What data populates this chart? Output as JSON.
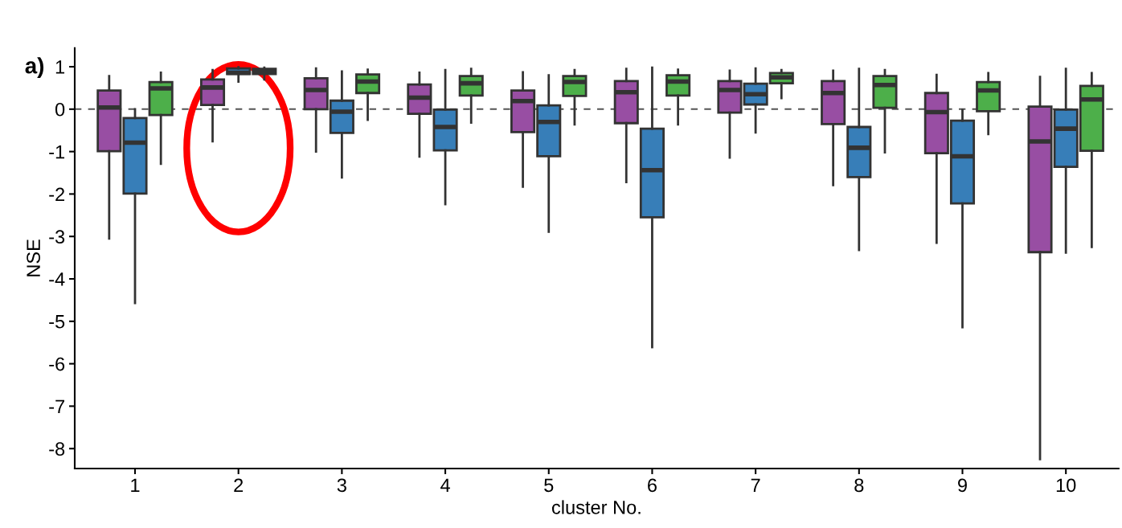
{
  "chart_data": {
    "type": "box",
    "xlabel": "cluster No.",
    "ylabel": "NSE",
    "annotations": [
      "a)"
    ],
    "categories": [
      "1",
      "2",
      "3",
      "4",
      "5",
      "6",
      "7",
      "8",
      "9",
      "10"
    ],
    "ylim": [
      -8.47,
      1.44
    ],
    "yticks": [
      -8,
      -7,
      -6,
      -5,
      -4,
      -3,
      -2,
      -1,
      0,
      1
    ],
    "grid": false,
    "legend": false,
    "ref_lines": [
      {
        "axis": "y",
        "value": 0,
        "line_style": "dashed",
        "color": "#555555"
      }
    ],
    "series": [
      {
        "color": "#984ea3",
        "boxes": [
          {
            "low": -3.05,
            "q1": -0.99,
            "median": 0.04,
            "q3": 0.44,
            "high": 0.78
          },
          {
            "low": -0.76,
            "q1": 0.1,
            "median": 0.51,
            "q3": 0.7,
            "high": 0.92
          },
          {
            "low": -1.0,
            "q1": 0.0,
            "median": 0.45,
            "q3": 0.73,
            "high": 0.96
          },
          {
            "low": -1.12,
            "q1": -0.11,
            "median": 0.27,
            "q3": 0.58,
            "high": 0.86
          },
          {
            "low": -1.83,
            "q1": -0.54,
            "median": 0.19,
            "q3": 0.44,
            "high": 0.87
          },
          {
            "low": -1.72,
            "q1": -0.33,
            "median": 0.4,
            "q3": 0.66,
            "high": 0.95
          },
          {
            "low": -1.14,
            "q1": -0.08,
            "median": 0.45,
            "q3": 0.66,
            "high": 0.91
          },
          {
            "low": -1.79,
            "q1": -0.35,
            "median": 0.38,
            "q3": 0.66,
            "high": 0.91
          },
          {
            "low": -3.15,
            "q1": -1.04,
            "median": -0.07,
            "q3": 0.38,
            "high": 0.81
          },
          {
            "low": -8.25,
            "q1": -3.37,
            "median": -0.76,
            "q3": 0.06,
            "high": 0.76
          }
        ]
      },
      {
        "color": "#377eb8",
        "boxes": [
          {
            "low": -4.57,
            "q1": -1.99,
            "median": -0.79,
            "q3": -0.21,
            "high": 0.0
          },
          {
            "low": 0.65,
            "q1": 0.83,
            "median": 0.86,
            "q3": 0.96,
            "high": 0.99
          },
          {
            "low": -1.61,
            "q1": -0.56,
            "median": -0.06,
            "q3": 0.2,
            "high": 0.89
          },
          {
            "low": -2.24,
            "q1": -0.97,
            "median": -0.42,
            "q3": -0.01,
            "high": 0.92
          },
          {
            "low": -2.89,
            "q1": -1.11,
            "median": -0.3,
            "q3": 0.09,
            "high": 0.8
          },
          {
            "low": -5.61,
            "q1": -2.55,
            "median": -1.44,
            "q3": -0.46,
            "high": 0.98
          },
          {
            "low": -0.55,
            "q1": 0.11,
            "median": 0.35,
            "q3": 0.6,
            "high": 0.96
          },
          {
            "low": -3.32,
            "q1": -1.6,
            "median": -0.91,
            "q3": -0.42,
            "high": 0.95
          },
          {
            "low": -5.14,
            "q1": -2.22,
            "median": -1.11,
            "q3": -0.27,
            "high": -0.02
          },
          {
            "low": -3.38,
            "q1": -1.36,
            "median": -0.46,
            "q3": -0.01,
            "high": 0.95
          }
        ]
      },
      {
        "color": "#4daf4a",
        "boxes": [
          {
            "low": -1.29,
            "q1": -0.14,
            "median": 0.49,
            "q3": 0.64,
            "high": 0.86
          },
          {
            "low": 0.7,
            "q1": 0.83,
            "median": 0.9,
            "q3": 0.95,
            "high": 0.98
          },
          {
            "low": -0.25,
            "q1": 0.38,
            "median": 0.65,
            "q3": 0.82,
            "high": 0.93
          },
          {
            "low": -0.32,
            "q1": 0.32,
            "median": 0.61,
            "q3": 0.78,
            "high": 0.95
          },
          {
            "low": -0.36,
            "q1": 0.31,
            "median": 0.64,
            "q3": 0.78,
            "high": 0.92
          },
          {
            "low": -0.36,
            "q1": 0.32,
            "median": 0.65,
            "q3": 0.8,
            "high": 0.93
          },
          {
            "low": 0.26,
            "q1": 0.61,
            "median": 0.75,
            "q3": 0.85,
            "high": 0.92
          },
          {
            "low": -1.02,
            "q1": 0.03,
            "median": 0.57,
            "q3": 0.78,
            "high": 0.92
          },
          {
            "low": -0.59,
            "q1": -0.05,
            "median": 0.44,
            "q3": 0.64,
            "high": 0.85
          },
          {
            "low": -3.25,
            "q1": -0.98,
            "median": 0.23,
            "q3": 0.55,
            "high": 0.85
          }
        ]
      }
    ]
  }
}
